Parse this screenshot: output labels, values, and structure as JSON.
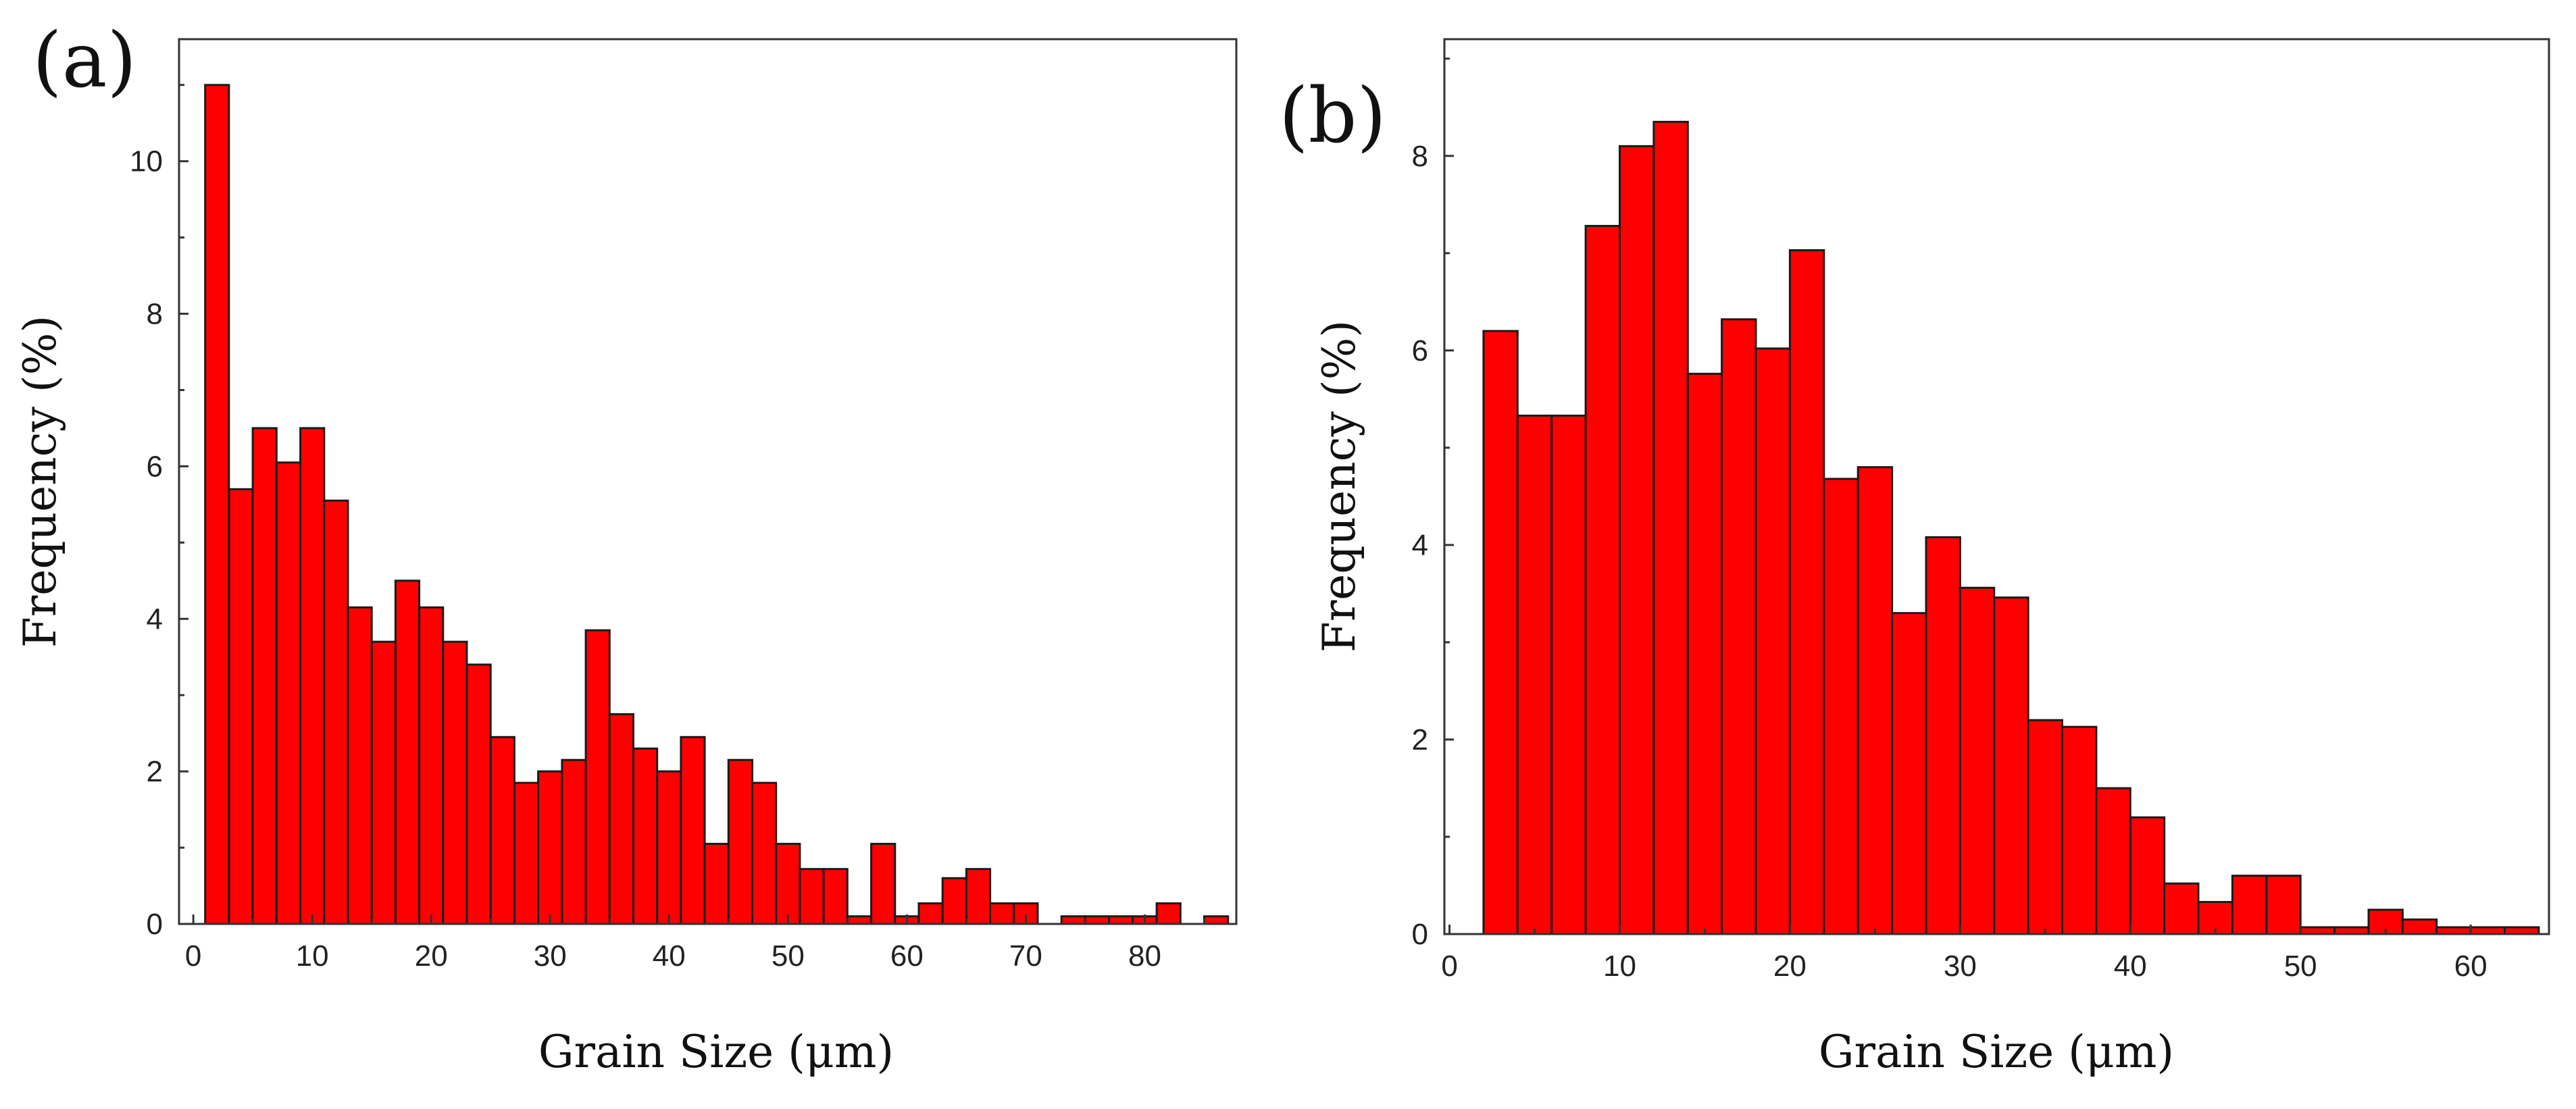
{
  "chart_data": [
    {
      "type": "bar",
      "panel_label": "(a)",
      "xlabel": "Grain Size (μm)",
      "ylabel": "Frequency (%)",
      "xlim": [
        -1.2,
        87.7
      ],
      "ylim": [
        0,
        11.6
      ],
      "xticks": [
        0,
        10,
        20,
        30,
        40,
        50,
        60,
        70,
        80
      ],
      "yticks": [
        0,
        2,
        4,
        6,
        8,
        10
      ],
      "bin_width": 2,
      "bin_starts": [
        1,
        3,
        5,
        7,
        9,
        11,
        13,
        15,
        17,
        19,
        21,
        23,
        25,
        27,
        29,
        31,
        33,
        35,
        37,
        39,
        41,
        43,
        45,
        47,
        49,
        51,
        53,
        55,
        57,
        59,
        61,
        63,
        65,
        67,
        69,
        71,
        73,
        75,
        77,
        79,
        81,
        83,
        85
      ],
      "values": [
        11.0,
        5.7,
        6.5,
        6.05,
        6.5,
        5.55,
        4.15,
        3.7,
        4.5,
        4.15,
        3.7,
        3.4,
        2.45,
        1.85,
        2.0,
        2.15,
        3.85,
        2.75,
        2.3,
        2.0,
        2.45,
        1.05,
        2.15,
        1.85,
        1.05,
        0.72,
        0.72,
        0.1,
        1.05,
        0.1,
        0.27,
        0.6,
        0.72,
        0.27,
        0.27,
        0,
        0.1,
        0.1,
        0.1,
        0.1,
        0.27,
        0,
        0.1
      ],
      "bar_color": "#ff0000"
    },
    {
      "type": "bar",
      "panel_label": "(b)",
      "xlabel": "Grain Size (μm)",
      "ylabel": "Frequency (%)",
      "xlim": [
        -0.3,
        64.6
      ],
      "ylim": [
        0,
        9.2
      ],
      "xticks": [
        0,
        10,
        20,
        30,
        40,
        50,
        60
      ],
      "yticks": [
        0,
        2,
        4,
        6,
        8
      ],
      "bin_width": 2,
      "bin_starts": [
        2,
        4,
        6,
        8,
        10,
        12,
        14,
        16,
        18,
        20,
        22,
        24,
        26,
        28,
        30,
        32,
        34,
        36,
        38,
        40,
        42,
        44,
        46,
        48,
        50,
        52,
        54,
        56,
        58,
        60,
        62
      ],
      "values": [
        6.2,
        5.33,
        5.33,
        7.28,
        8.1,
        8.35,
        5.76,
        6.32,
        6.02,
        7.03,
        4.68,
        4.8,
        3.3,
        4.08,
        3.56,
        3.46,
        2.2,
        2.13,
        1.5,
        1.2,
        0.52,
        0.33,
        0.6,
        0.6,
        0.07,
        0.07,
        0.25,
        0.15,
        0.07,
        0.07,
        0.07
      ],
      "bar_color": "#ff0000"
    }
  ]
}
